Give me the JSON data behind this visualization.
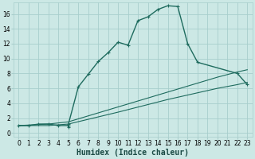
{
  "xlabel": "Humidex (Indice chaleur)",
  "bg_color": "#cce8e5",
  "grid_color": "#a8cecc",
  "line_color": "#1e6b5e",
  "xlim": [
    -0.5,
    23.5
  ],
  "ylim": [
    -0.5,
    17.5
  ],
  "xticks": [
    0,
    1,
    2,
    3,
    4,
    5,
    6,
    7,
    8,
    9,
    10,
    11,
    12,
    13,
    14,
    15,
    16,
    17,
    18,
    19,
    20,
    21,
    22,
    23
  ],
  "yticks": [
    0,
    2,
    4,
    6,
    8,
    10,
    12,
    14,
    16
  ],
  "main_x": [
    0,
    1,
    2,
    3,
    4,
    5,
    5,
    5,
    6,
    7,
    8,
    9,
    10,
    11,
    12,
    13,
    14,
    15,
    16,
    17,
    18,
    22,
    23
  ],
  "main_y": [
    1,
    1,
    1.2,
    1.2,
    1.0,
    1.0,
    0.8,
    1.2,
    6.2,
    7.9,
    9.6,
    10.8,
    12.2,
    11.8,
    15.1,
    15.6,
    16.6,
    17.1,
    17.0,
    12.0,
    9.5,
    8.0,
    6.5
  ],
  "line2_x": [
    0,
    3,
    5,
    10,
    15,
    20,
    22,
    23
  ],
  "line2_y": [
    1.0,
    1.2,
    1.5,
    3.5,
    5.5,
    7.5,
    8.2,
    8.5
  ],
  "line3_x": [
    0,
    3,
    5,
    10,
    15,
    20,
    22,
    23
  ],
  "line3_y": [
    1.0,
    1.0,
    1.2,
    2.8,
    4.5,
    6.0,
    6.5,
    6.8
  ],
  "xlabel_fontsize": 7,
  "tick_fontsize": 5.5
}
